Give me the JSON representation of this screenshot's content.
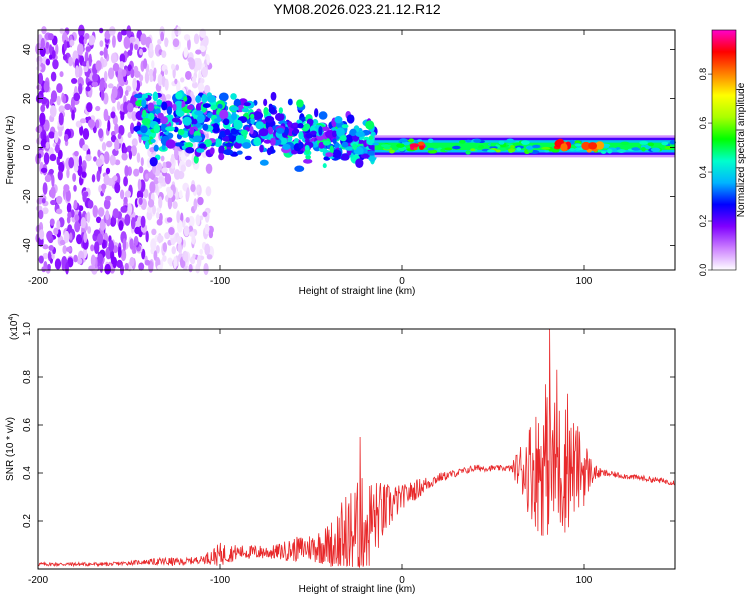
{
  "title": "YM08.2026.023.21.12.R12",
  "colors": {
    "axis": "#000000",
    "snr_line": "#e8282a",
    "background": "#ffffff"
  },
  "chart_data": [
    {
      "type": "heatmap",
      "name": "spectrogram",
      "xlabel": "Height of straight line (km)",
      "ylabel": "Frequency (Hz)",
      "xlim": [
        -200,
        150
      ],
      "ylim": [
        -50,
        48
      ],
      "xticks": [
        "-200",
        "-100",
        "0",
        "100"
      ],
      "xtick_values": [
        -200,
        -100,
        0,
        100
      ],
      "yticks": [
        "40",
        "20",
        "0",
        "-20",
        "-40"
      ],
      "ytick_values": [
        40,
        20,
        0,
        -20,
        -40
      ],
      "colorbar": {
        "label": "Normalized spectral amplitude",
        "range": [
          0,
          0.98
        ],
        "ticks": [
          "0.0",
          "0.2",
          "0.4",
          "0.6",
          "0.8"
        ],
        "tick_values": [
          0.0,
          0.2,
          0.4,
          0.6,
          0.8
        ],
        "colormap": [
          "#ffffff",
          "#cc80ff",
          "#8000ff",
          "#0000ff",
          "#00b4ff",
          "#00ffcc",
          "#00ff00",
          "#aaff00",
          "#ffff00",
          "#ff8000",
          "#ff0000",
          "#ff00cc"
        ]
      },
      "regions": [
        {
          "feature": "diffuse noise scatter",
          "x": [
            -200,
            -105
          ],
          "freq": [
            -50,
            48
          ],
          "amplitude": 0.15
        },
        {
          "feature": "broadband cluster",
          "x": [
            -145,
            -15
          ],
          "freq": [
            -18,
            22
          ],
          "amplitude": 0.4
        },
        {
          "feature": "narrow band near 0 Hz",
          "x": [
            -15,
            150
          ],
          "freq": [
            -2,
            3
          ],
          "amplitude": 0.5
        },
        {
          "feature": "peak",
          "x": [
            5,
            12
          ],
          "freq": [
            0,
            2
          ],
          "amplitude": 0.95
        },
        {
          "feature": "peak",
          "x": [
            85,
            95
          ],
          "freq": [
            0,
            2
          ],
          "amplitude": 0.95
        },
        {
          "feature": "peak",
          "x": [
            100,
            110
          ],
          "freq": [
            -1,
            1
          ],
          "amplitude": 0.9
        }
      ]
    },
    {
      "type": "line",
      "name": "snr",
      "xlabel": "Height of straight line (km)",
      "ylabel": "SNR (10 * v/v)",
      "yscale_label": "(x10",
      "yscale_exp": "4",
      "yscale_tail": ")",
      "xlim": [
        -200,
        150
      ],
      "ylim": [
        0,
        1.0
      ],
      "xticks": [
        "-200",
        "-100",
        "0",
        "100"
      ],
      "xtick_values": [
        -200,
        -100,
        0,
        100
      ],
      "yticks": [
        "1.0",
        "0.8",
        "0.6",
        "0.4",
        "0.2"
      ],
      "ytick_values": [
        1.0,
        0.8,
        0.6,
        0.4,
        0.2
      ],
      "series": [
        {
          "name": "SNR",
          "x": [
            -200,
            -180,
            -160,
            -140,
            -130,
            -120,
            -110,
            -100,
            -90,
            -80,
            -70,
            -60,
            -50,
            -40,
            -30,
            -20,
            -10,
            0,
            10,
            20,
            30,
            40,
            50,
            60,
            70,
            75,
            80,
            85,
            90,
            95,
            100,
            105,
            110,
            120,
            130,
            140,
            150
          ],
          "values": [
            0.02,
            0.02,
            0.02,
            0.03,
            0.03,
            0.03,
            0.04,
            0.06,
            0.07,
            0.07,
            0.07,
            0.08,
            0.09,
            0.1,
            0.13,
            0.18,
            0.24,
            0.3,
            0.34,
            0.38,
            0.4,
            0.42,
            0.42,
            0.42,
            0.42,
            0.42,
            0.43,
            0.42,
            0.42,
            0.42,
            0.41,
            0.4,
            0.4,
            0.39,
            0.38,
            0.37,
            0.36
          ],
          "noise": [
            0.008,
            0.008,
            0.008,
            0.01,
            0.02,
            0.015,
            0.015,
            0.05,
            0.03,
            0.03,
            0.03,
            0.05,
            0.06,
            0.09,
            0.2,
            0.22,
            0.12,
            0.05,
            0.04,
            0.02,
            0.015,
            0.015,
            0.012,
            0.012,
            0.2,
            0.28,
            0.3,
            0.3,
            0.28,
            0.2,
            0.15,
            0.04,
            0.015,
            0.012,
            0.012,
            0.012,
            0.012
          ]
        }
      ],
      "peaks": [
        {
          "x": 81,
          "value": 1.0
        },
        {
          "x": 79,
          "value": 0.77
        },
        {
          "x": 91,
          "value": 0.73
        },
        {
          "x": 85,
          "value": 0.83
        },
        {
          "x": -23,
          "value": 0.55
        }
      ]
    }
  ]
}
